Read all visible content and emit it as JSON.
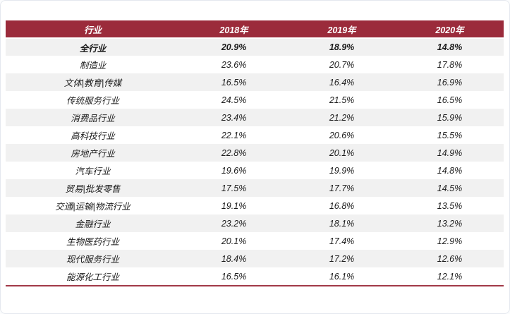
{
  "colors": {
    "header_bg": "#9B2B3B",
    "stripe": "#F1F1F1",
    "bottom_line": "#A23A48",
    "text": "#1a1a1a"
  },
  "table": {
    "columns": [
      "行业",
      "2018年",
      "2019年",
      "2020年"
    ],
    "rows": [
      {
        "industry": "全行业",
        "y2018": "20.9%",
        "y2019": "18.9%",
        "y2020": "14.8%",
        "bold": true
      },
      {
        "industry": "制造业",
        "y2018": "23.6%",
        "y2019": "20.7%",
        "y2020": "17.8%",
        "bold": false
      },
      {
        "industry": "文体|教育|传媒",
        "y2018": "16.5%",
        "y2019": "16.4%",
        "y2020": "16.9%",
        "bold": false
      },
      {
        "industry": "传统服务行业",
        "y2018": "24.5%",
        "y2019": "21.5%",
        "y2020": "16.5%",
        "bold": false
      },
      {
        "industry": "消费品行业",
        "y2018": "23.4%",
        "y2019": "21.2%",
        "y2020": "15.9%",
        "bold": false
      },
      {
        "industry": "高科技行业",
        "y2018": "22.1%",
        "y2019": "20.6%",
        "y2020": "15.5%",
        "bold": false
      },
      {
        "industry": "房地产行业",
        "y2018": "22.8%",
        "y2019": "20.1%",
        "y2020": "14.9%",
        "bold": false
      },
      {
        "industry": "汽车行业",
        "y2018": "19.6%",
        "y2019": "19.9%",
        "y2020": "14.8%",
        "bold": false
      },
      {
        "industry": "贸易|批发零售",
        "y2018": "17.5%",
        "y2019": "17.7%",
        "y2020": "14.5%",
        "bold": false
      },
      {
        "industry": "交通|运输|物流行业",
        "y2018": "19.1%",
        "y2019": "16.8%",
        "y2020": "13.5%",
        "bold": false
      },
      {
        "industry": "金融行业",
        "y2018": "23.2%",
        "y2019": "18.1%",
        "y2020": "13.2%",
        "bold": false
      },
      {
        "industry": "生物医药行业",
        "y2018": "20.1%",
        "y2019": "17.4%",
        "y2020": "12.9%",
        "bold": false
      },
      {
        "industry": "现代服务行业",
        "y2018": "18.4%",
        "y2019": "17.2%",
        "y2020": "12.6%",
        "bold": false
      },
      {
        "industry": "能源化工行业",
        "y2018": "16.5%",
        "y2019": "16.1%",
        "y2020": "12.1%",
        "bold": false
      }
    ]
  },
  "chart_data": {
    "type": "table",
    "title": "",
    "categories": [
      "全行业",
      "制造业",
      "文体|教育|传媒",
      "传统服务行业",
      "消费品行业",
      "高科技行业",
      "房地产行业",
      "汽车行业",
      "贸易|批发零售",
      "交通|运输|物流行业",
      "金融行业",
      "生物医药行业",
      "现代服务行业",
      "能源化工行业"
    ],
    "series": [
      {
        "name": "2018年",
        "values": [
          20.9,
          23.6,
          16.5,
          24.5,
          23.4,
          22.1,
          22.8,
          19.6,
          17.5,
          19.1,
          23.2,
          20.1,
          18.4,
          16.5
        ]
      },
      {
        "name": "2019年",
        "values": [
          18.9,
          20.7,
          16.4,
          21.5,
          21.2,
          20.6,
          20.1,
          19.9,
          17.7,
          16.8,
          18.1,
          17.4,
          17.2,
          16.1
        ]
      },
      {
        "name": "2020年",
        "values": [
          14.8,
          17.8,
          16.9,
          16.5,
          15.9,
          15.5,
          14.9,
          14.8,
          14.5,
          13.5,
          13.2,
          12.9,
          12.6,
          12.1
        ]
      }
    ],
    "unit": "%",
    "column_header": "行业"
  }
}
